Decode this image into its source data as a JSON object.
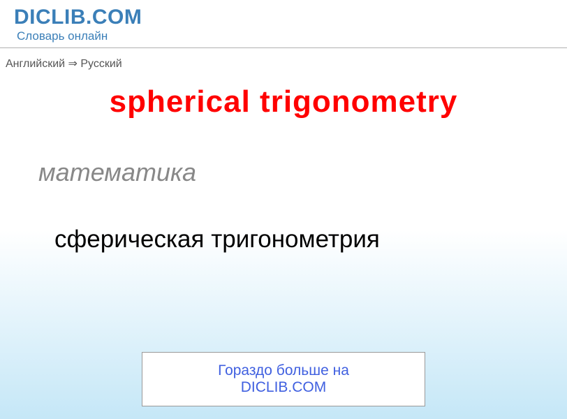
{
  "header": {
    "logo_text": "DICLIB.COM",
    "tagline": "Словарь онлайн"
  },
  "breadcrumb": {
    "text": "Английский ⇒ Русский"
  },
  "entry": {
    "term": "spherical trigonometry",
    "subject_label": "математика",
    "translation": "сферическая тригонометрия"
  },
  "footer": {
    "more_button_label": "Гораздо больше на DICLIB.COM"
  },
  "colors": {
    "logo_color": "#3b7fb8",
    "title_color": "#ff0000",
    "subject_color": "#888888",
    "translation_color": "#000000",
    "button_text_color": "#4060e0",
    "gradient_bottom": "#c5e7f7"
  }
}
